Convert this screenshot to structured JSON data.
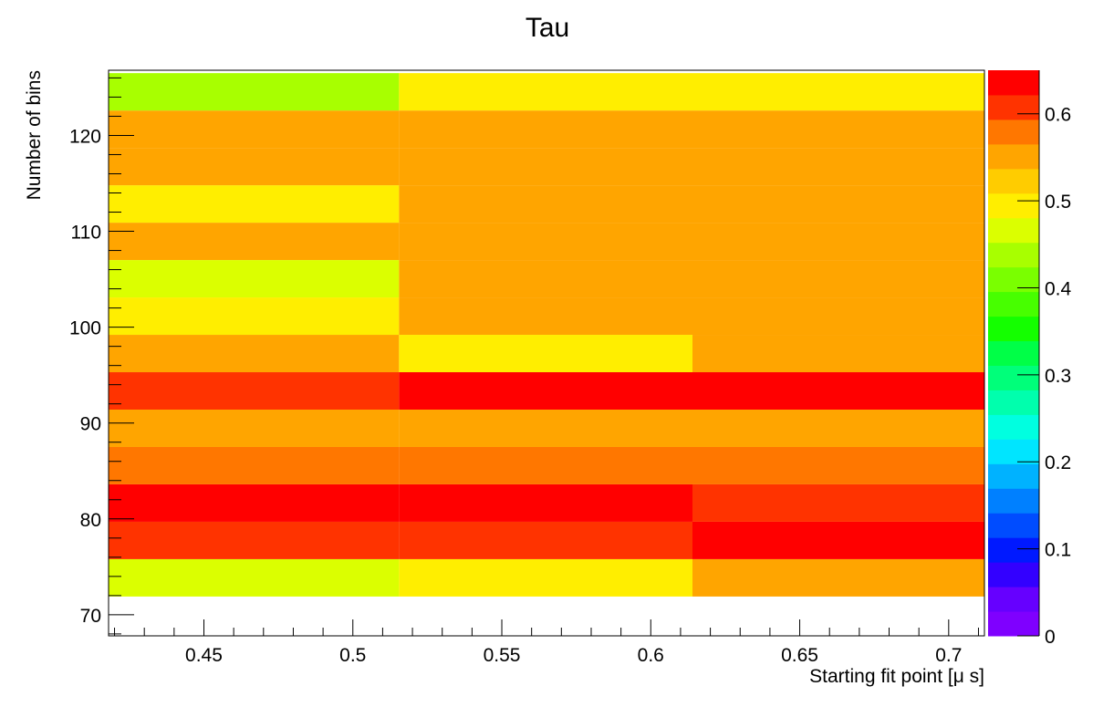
{
  "chart_data": {
    "type": "heatmap",
    "title": "Tau",
    "xlabel": "Starting fit point [μ s]",
    "ylabel": "Number of bins",
    "xlim": [
      0.418,
      0.712
    ],
    "ylim": [
      67.8,
      126.8
    ],
    "x_ticks": [
      "0.45",
      "0.5",
      "0.55",
      "0.6",
      "0.65",
      "0.7"
    ],
    "y_ticks": [
      "70",
      "80",
      "90",
      "100",
      "110",
      "120"
    ],
    "x_tick_values": [
      0.45,
      0.5,
      0.55,
      0.6,
      0.65,
      0.7
    ],
    "y_tick_values": [
      70,
      80,
      90,
      100,
      110,
      120
    ],
    "x_edges": [
      0.418,
      0.5155,
      0.614,
      0.712
    ],
    "y_edges": [
      71.9,
      75.8,
      79.7,
      83.6,
      87.5,
      91.4,
      95.3,
      99.2,
      103.1,
      107.0,
      110.9,
      114.8,
      118.7,
      122.6,
      126.5
    ],
    "values": [
      [
        0.475,
        0.495,
        0.565
      ],
      [
        0.605,
        0.605,
        0.63
      ],
      [
        0.635,
        0.635,
        0.605
      ],
      [
        0.57,
        0.57,
        0.57
      ],
      [
        0.54,
        0.565,
        0.565
      ],
      [
        0.6,
        0.635,
        0.635
      ],
      [
        0.54,
        0.5,
        0.565
      ],
      [
        0.5,
        0.54,
        0.565
      ],
      [
        0.475,
        0.565,
        0.54
      ],
      [
        0.565,
        0.565,
        0.565
      ],
      [
        0.505,
        0.54,
        0.54
      ],
      [
        0.54,
        0.565,
        0.565
      ],
      [
        0.54,
        0.54,
        0.565
      ],
      [
        0.44,
        0.505,
        0.505
      ]
    ],
    "colorbar": {
      "zlim": [
        0,
        0.65
      ],
      "ticks": [
        "0",
        "0.1",
        "0.2",
        "0.3",
        "0.4",
        "0.5",
        "0.6"
      ],
      "tick_values": [
        0,
        0.1,
        0.2,
        0.3,
        0.4,
        0.5,
        0.6
      ],
      "palette": [
        "#7f00ff",
        "#6600ff",
        "#3300ff",
        "#0019ff",
        "#004cff",
        "#0080ff",
        "#00b2ff",
        "#00e5ff",
        "#00ffe0",
        "#00ffad",
        "#00ff7a",
        "#00ff47",
        "#14ff00",
        "#47ff00",
        "#7aff00",
        "#a8ff00",
        "#dbff00",
        "#ffee00",
        "#ffcc00",
        "#ffa500",
        "#ff7700",
        "#ff3300",
        "#ff0000"
      ]
    },
    "grid": false,
    "legend": "colorbar-right"
  }
}
